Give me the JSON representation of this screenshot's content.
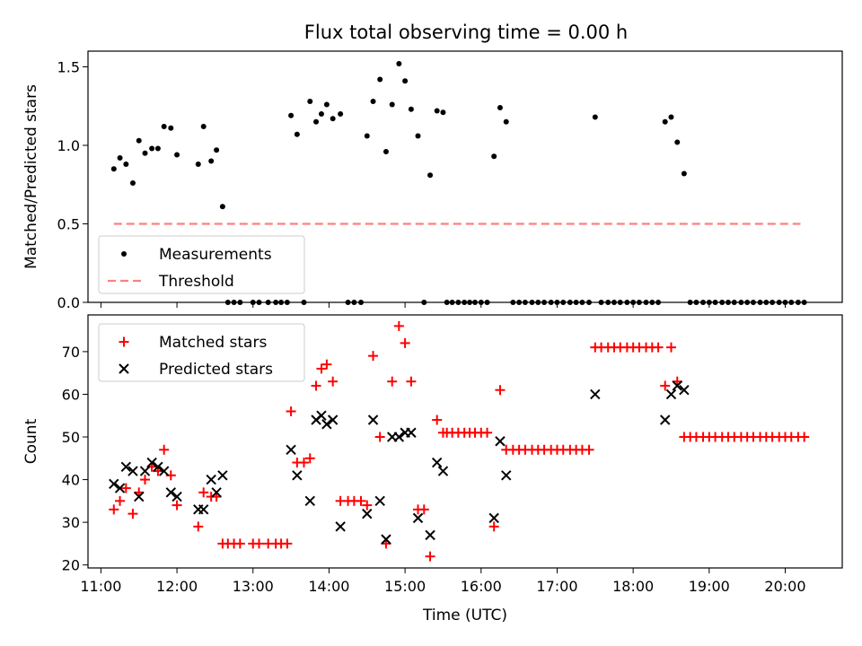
{
  "figure": {
    "title": "Flux total observing time = 0.00 h"
  },
  "chart_data": [
    {
      "type": "scatter",
      "ylabel": "Matched/Predicted stars",
      "xlim": [
        10.83,
        20.75
      ],
      "ylim": [
        0.0,
        1.6
      ],
      "yticks": [
        0.0,
        0.5,
        1.0,
        1.5
      ],
      "ytick_labels": [
        "0.0",
        "0.5",
        "1.0",
        "1.5"
      ],
      "xtick_labels_shown": false,
      "legend": {
        "placement": "lower left",
        "entries": [
          "Measurements",
          "Threshold"
        ]
      },
      "series": [
        {
          "name": "Measurements",
          "marker": "dot",
          "color": "#000000",
          "points": [
            [
              11.17,
              0.85
            ],
            [
              11.25,
              0.92
            ],
            [
              11.33,
              0.88
            ],
            [
              11.42,
              0.76
            ],
            [
              11.5,
              1.03
            ],
            [
              11.58,
              0.95
            ],
            [
              11.67,
              0.98
            ],
            [
              11.75,
              0.98
            ],
            [
              11.83,
              1.12
            ],
            [
              11.92,
              1.11
            ],
            [
              12.0,
              0.94
            ],
            [
              12.28,
              0.88
            ],
            [
              12.35,
              1.12
            ],
            [
              12.45,
              0.9
            ],
            [
              12.52,
              0.97
            ],
            [
              12.6,
              0.61
            ],
            [
              12.67,
              0.0
            ],
            [
              12.75,
              0.0
            ],
            [
              12.83,
              0.0
            ],
            [
              13.0,
              0.0
            ],
            [
              13.08,
              0.0
            ],
            [
              13.2,
              0.0
            ],
            [
              13.3,
              0.0
            ],
            [
              13.37,
              0.0
            ],
            [
              13.45,
              0.0
            ],
            [
              13.5,
              1.19
            ],
            [
              13.58,
              1.07
            ],
            [
              13.67,
              0.0
            ],
            [
              13.75,
              1.28
            ],
            [
              13.83,
              1.15
            ],
            [
              13.9,
              1.2
            ],
            [
              13.97,
              1.26
            ],
            [
              14.05,
              1.17
            ],
            [
              14.15,
              1.2
            ],
            [
              14.25,
              0.0
            ],
            [
              14.33,
              0.0
            ],
            [
              14.42,
              0.0
            ],
            [
              14.5,
              1.06
            ],
            [
              14.58,
              1.28
            ],
            [
              14.67,
              1.42
            ],
            [
              14.75,
              0.96
            ],
            [
              14.83,
              1.26
            ],
            [
              14.92,
              1.52
            ],
            [
              15.0,
              1.41
            ],
            [
              15.08,
              1.23
            ],
            [
              15.17,
              1.06
            ],
            [
              15.25,
              0.0
            ],
            [
              15.33,
              0.81
            ],
            [
              15.42,
              1.22
            ],
            [
              15.5,
              1.21
            ],
            [
              15.55,
              0.0
            ],
            [
              15.62,
              0.0
            ],
            [
              15.7,
              0.0
            ],
            [
              15.78,
              0.0
            ],
            [
              15.85,
              0.0
            ],
            [
              15.92,
              0.0
            ],
            [
              16.0,
              0.0
            ],
            [
              16.08,
              0.0
            ],
            [
              16.17,
              0.93
            ],
            [
              16.25,
              1.24
            ],
            [
              16.33,
              1.15
            ],
            [
              16.42,
              0.0
            ],
            [
              16.5,
              0.0
            ],
            [
              16.58,
              0.0
            ],
            [
              16.67,
              0.0
            ],
            [
              16.75,
              0.0
            ],
            [
              16.83,
              0.0
            ],
            [
              16.92,
              0.0
            ],
            [
              17.0,
              0.0
            ],
            [
              17.08,
              0.0
            ],
            [
              17.17,
              0.0
            ],
            [
              17.25,
              0.0
            ],
            [
              17.33,
              0.0
            ],
            [
              17.42,
              0.0
            ],
            [
              17.5,
              1.18
            ],
            [
              17.58,
              0.0
            ],
            [
              17.67,
              0.0
            ],
            [
              17.75,
              0.0
            ],
            [
              17.83,
              0.0
            ],
            [
              17.92,
              0.0
            ],
            [
              18.0,
              0.0
            ],
            [
              18.08,
              0.0
            ],
            [
              18.17,
              0.0
            ],
            [
              18.25,
              0.0
            ],
            [
              18.33,
              0.0
            ],
            [
              18.42,
              1.15
            ],
            [
              18.5,
              1.18
            ],
            [
              18.58,
              1.02
            ],
            [
              18.67,
              0.82
            ],
            [
              18.75,
              0.0
            ],
            [
              18.83,
              0.0
            ],
            [
              18.92,
              0.0
            ],
            [
              19.0,
              0.0
            ],
            [
              19.08,
              0.0
            ],
            [
              19.17,
              0.0
            ],
            [
              19.25,
              0.0
            ],
            [
              19.33,
              0.0
            ],
            [
              19.42,
              0.0
            ],
            [
              19.5,
              0.0
            ],
            [
              19.58,
              0.0
            ],
            [
              19.67,
              0.0
            ],
            [
              19.75,
              0.0
            ],
            [
              19.83,
              0.0
            ],
            [
              19.92,
              0.0
            ],
            [
              20.0,
              0.0
            ],
            [
              20.08,
              0.0
            ],
            [
              20.17,
              0.0
            ],
            [
              20.25,
              0.0
            ]
          ]
        },
        {
          "name": "Threshold",
          "style": "dashed",
          "color": "#ff7f7f",
          "points": [
            [
              11.17,
              0.5
            ],
            [
              20.2,
              0.5
            ]
          ]
        }
      ]
    },
    {
      "type": "scatter",
      "ylabel": "Count",
      "xlabel": "Time (UTC)",
      "xlim": [
        10.83,
        20.75
      ],
      "ylim": [
        19.3,
        78.6
      ],
      "yticks": [
        20,
        30,
        40,
        50,
        60,
        70
      ],
      "ytick_labels": [
        "20",
        "30",
        "40",
        "50",
        "60",
        "70"
      ],
      "xticks": [
        11,
        12,
        13,
        14,
        15,
        16,
        17,
        18,
        19,
        20
      ],
      "xtick_labels": [
        "11:00",
        "12:00",
        "13:00",
        "14:00",
        "15:00",
        "16:00",
        "17:00",
        "18:00",
        "19:00",
        "20:00"
      ],
      "legend": {
        "placement": "upper left",
        "entries": [
          "Matched stars",
          "Predicted stars"
        ]
      },
      "series": [
        {
          "name": "Matched stars",
          "marker": "plus",
          "color": "#ff0000",
          "points": [
            [
              11.17,
              33
            ],
            [
              11.25,
              35
            ],
            [
              11.33,
              38
            ],
            [
              11.42,
              32
            ],
            [
              11.5,
              37
            ],
            [
              11.58,
              40
            ],
            [
              11.67,
              43
            ],
            [
              11.75,
              42
            ],
            [
              11.83,
              47
            ],
            [
              11.92,
              41
            ],
            [
              12.0,
              34
            ],
            [
              12.28,
              29
            ],
            [
              12.35,
              37
            ],
            [
              12.45,
              36
            ],
            [
              12.52,
              36
            ],
            [
              12.6,
              25
            ],
            [
              12.67,
              25
            ],
            [
              12.75,
              25
            ],
            [
              12.83,
              25
            ],
            [
              13.0,
              25
            ],
            [
              13.08,
              25
            ],
            [
              13.2,
              25
            ],
            [
              13.3,
              25
            ],
            [
              13.37,
              25
            ],
            [
              13.45,
              25
            ],
            [
              13.5,
              56
            ],
            [
              13.58,
              44
            ],
            [
              13.67,
              44
            ],
            [
              13.75,
              45
            ],
            [
              13.83,
              62
            ],
            [
              13.9,
              66
            ],
            [
              13.97,
              67
            ],
            [
              14.05,
              63
            ],
            [
              14.15,
              35
            ],
            [
              14.25,
              35
            ],
            [
              14.33,
              35
            ],
            [
              14.42,
              35
            ],
            [
              14.5,
              34
            ],
            [
              14.58,
              69
            ],
            [
              14.67,
              50
            ],
            [
              14.75,
              25
            ],
            [
              14.83,
              63
            ],
            [
              14.92,
              76
            ],
            [
              15.0,
              72
            ],
            [
              15.08,
              63
            ],
            [
              15.17,
              33
            ],
            [
              15.25,
              33
            ],
            [
              15.33,
              22
            ],
            [
              15.42,
              54
            ],
            [
              15.5,
              51
            ],
            [
              15.55,
              51
            ],
            [
              15.62,
              51
            ],
            [
              15.7,
              51
            ],
            [
              15.78,
              51
            ],
            [
              15.85,
              51
            ],
            [
              15.92,
              51
            ],
            [
              16.0,
              51
            ],
            [
              16.08,
              51
            ],
            [
              16.17,
              29
            ],
            [
              16.25,
              61
            ],
            [
              16.33,
              47
            ],
            [
              16.42,
              47
            ],
            [
              16.5,
              47
            ],
            [
              16.58,
              47
            ],
            [
              16.67,
              47
            ],
            [
              16.75,
              47
            ],
            [
              16.83,
              47
            ],
            [
              16.92,
              47
            ],
            [
              17.0,
              47
            ],
            [
              17.08,
              47
            ],
            [
              17.17,
              47
            ],
            [
              17.25,
              47
            ],
            [
              17.33,
              47
            ],
            [
              17.42,
              47
            ],
            [
              17.5,
              71
            ],
            [
              17.58,
              71
            ],
            [
              17.67,
              71
            ],
            [
              17.75,
              71
            ],
            [
              17.83,
              71
            ],
            [
              17.92,
              71
            ],
            [
              18.0,
              71
            ],
            [
              18.08,
              71
            ],
            [
              18.17,
              71
            ],
            [
              18.25,
              71
            ],
            [
              18.33,
              71
            ],
            [
              18.42,
              62
            ],
            [
              18.5,
              71
            ],
            [
              18.58,
              63
            ],
            [
              18.67,
              50
            ],
            [
              18.75,
              50
            ],
            [
              18.83,
              50
            ],
            [
              18.92,
              50
            ],
            [
              19.0,
              50
            ],
            [
              19.08,
              50
            ],
            [
              19.17,
              50
            ],
            [
              19.25,
              50
            ],
            [
              19.33,
              50
            ],
            [
              19.42,
              50
            ],
            [
              19.5,
              50
            ],
            [
              19.58,
              50
            ],
            [
              19.67,
              50
            ],
            [
              19.75,
              50
            ],
            [
              19.83,
              50
            ],
            [
              19.92,
              50
            ],
            [
              20.0,
              50
            ],
            [
              20.08,
              50
            ],
            [
              20.17,
              50
            ],
            [
              20.25,
              50
            ]
          ]
        },
        {
          "name": "Predicted stars",
          "marker": "x",
          "color": "#000000",
          "points": [
            [
              11.17,
              39
            ],
            [
              11.25,
              38
            ],
            [
              11.33,
              43
            ],
            [
              11.42,
              42
            ],
            [
              11.5,
              36
            ],
            [
              11.58,
              42
            ],
            [
              11.67,
              44
            ],
            [
              11.75,
              43
            ],
            [
              11.83,
              42
            ],
            [
              11.92,
              37
            ],
            [
              12.0,
              36
            ],
            [
              12.28,
              33
            ],
            [
              12.35,
              33
            ],
            [
              12.45,
              40
            ],
            [
              12.52,
              37
            ],
            [
              12.6,
              41
            ],
            [
              13.5,
              47
            ],
            [
              13.58,
              41
            ],
            [
              13.75,
              35
            ],
            [
              13.83,
              54
            ],
            [
              13.9,
              55
            ],
            [
              13.97,
              53
            ],
            [
              14.05,
              54
            ],
            [
              14.15,
              29
            ],
            [
              14.5,
              32
            ],
            [
              14.58,
              54
            ],
            [
              14.67,
              35
            ],
            [
              14.75,
              26
            ],
            [
              14.83,
              50
            ],
            [
              14.92,
              50
            ],
            [
              15.0,
              51
            ],
            [
              15.08,
              51
            ],
            [
              15.17,
              31
            ],
            [
              15.33,
              27
            ],
            [
              15.42,
              44
            ],
            [
              15.5,
              42
            ],
            [
              16.17,
              31
            ],
            [
              16.25,
              49
            ],
            [
              16.33,
              41
            ],
            [
              17.5,
              60
            ],
            [
              18.42,
              54
            ],
            [
              18.5,
              60
            ],
            [
              18.58,
              62
            ],
            [
              18.67,
              61
            ]
          ]
        }
      ]
    }
  ]
}
